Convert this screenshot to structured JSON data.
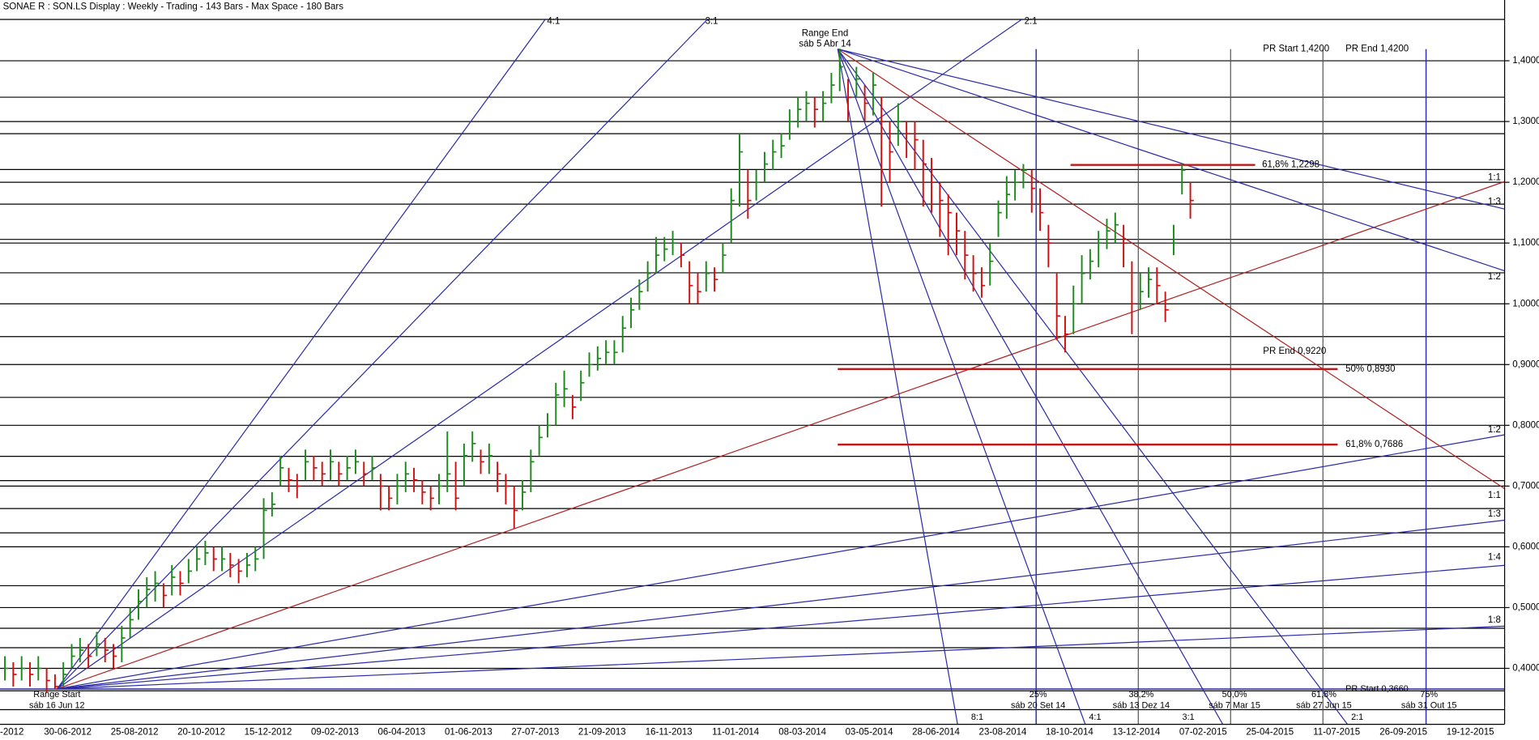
{
  "chart_data": {
    "type": "hlc",
    "title": "SONAE R : SON.LS Display :  Weekly  - Trading - 143 Bars -  Max Space - 180 Bars",
    "categories": [
      "-2012",
      "30-06-2012",
      "25-08-2012",
      "20-10-2012",
      "15-12-2012",
      "09-02-2013",
      "06-04-2013",
      "01-06-2013",
      "27-07-2013",
      "21-09-2013",
      "16-11-2013",
      "11-01-2014",
      "08-03-2014",
      "03-05-2014",
      "28-06-2014",
      "23-08-2014",
      "18-10-2014",
      "13-12-2014",
      "07-02-2015",
      "25-04-2015",
      "11-07-2015",
      "26-09-2015",
      "19-12-2015"
    ],
    "ylim": [
      0.3,
      1.5
    ],
    "yticks": [
      {
        "value": 0.4,
        "label": "0,4000"
      },
      {
        "value": 0.5,
        "label": "0,5000"
      },
      {
        "value": 0.6,
        "label": "0,6000"
      },
      {
        "value": 0.7,
        "label": "0,7000"
      },
      {
        "value": 0.8,
        "label": "0,8000"
      },
      {
        "value": 0.9,
        "label": "0,9000"
      },
      {
        "value": 1.0,
        "label": "1,0000"
      },
      {
        "value": 1.1,
        "label": "1,1000"
      },
      {
        "value": 1.2,
        "label": "1,2000"
      },
      {
        "value": 1.3,
        "label": "1,3000"
      },
      {
        "value": 1.4,
        "label": "1,4000"
      }
    ],
    "levels": [
      1.468,
      1.34,
      1.28,
      1.221,
      1.164,
      1.106,
      1.051,
      0.946,
      0.846,
      0.749,
      0.709,
      0.663,
      0.623,
      0.536,
      0.466,
      0.434,
      0.363,
      0.332
    ],
    "up_color": "#1a8a1a",
    "down_color": "#d01010",
    "high": [
      0.42,
      0.41,
      0.42,
      0.41,
      0.42,
      0.4,
      0.39,
      0.41,
      0.44,
      0.45,
      0.44,
      0.46,
      0.45,
      0.44,
      0.47,
      0.5,
      0.53,
      0.55,
      0.56,
      0.54,
      0.57,
      0.56,
      0.58,
      0.6,
      0.61,
      0.6,
      0.6,
      0.59,
      0.58,
      0.59,
      0.6,
      0.68,
      0.69,
      0.75,
      0.73,
      0.72,
      0.76,
      0.75,
      0.74,
      0.76,
      0.74,
      0.75,
      0.76,
      0.74,
      0.75,
      0.72,
      0.7,
      0.72,
      0.74,
      0.73,
      0.71,
      0.7,
      0.72,
      0.79,
      0.74,
      0.77,
      0.79,
      0.76,
      0.77,
      0.74,
      0.72,
      0.7,
      0.71,
      0.76,
      0.8,
      0.82,
      0.87,
      0.89,
      0.85,
      0.89,
      0.92,
      0.93,
      0.94,
      0.94,
      0.98,
      1.01,
      1.04,
      1.07,
      1.11,
      1.11,
      1.12,
      1.1,
      1.07,
      1.05,
      1.07,
      1.06,
      1.1,
      1.19,
      1.28,
      1.22,
      1.22,
      1.25,
      1.27,
      1.28,
      1.32,
      1.34,
      1.35,
      1.34,
      1.35,
      1.38,
      1.42,
      1.37,
      1.39,
      1.36,
      1.38,
      1.34,
      1.3,
      1.33,
      1.3,
      1.3,
      1.27,
      1.24,
      1.2,
      1.18,
      1.15,
      1.12,
      1.08,
      1.06,
      1.1,
      1.17,
      1.21,
      1.22,
      1.23,
      1.22,
      1.19,
      1.13,
      1.05,
      0.98,
      1.03,
      1.08,
      1.09,
      1.12,
      1.14,
      1.15,
      1.13,
      1.07,
      1.05,
      1.06,
      1.06,
      1.02,
      1.13,
      1.23,
      1.2
    ],
    "low": [
      0.38,
      0.37,
      0.38,
      0.37,
      0.38,
      0.36,
      0.366,
      0.37,
      0.4,
      0.41,
      0.4,
      0.42,
      0.41,
      0.4,
      0.41,
      0.45,
      0.48,
      0.5,
      0.51,
      0.5,
      0.52,
      0.52,
      0.54,
      0.56,
      0.57,
      0.56,
      0.56,
      0.55,
      0.54,
      0.55,
      0.56,
      0.58,
      0.65,
      0.7,
      0.69,
      0.68,
      0.71,
      0.71,
      0.7,
      0.71,
      0.7,
      0.71,
      0.72,
      0.7,
      0.71,
      0.66,
      0.66,
      0.67,
      0.69,
      0.69,
      0.67,
      0.66,
      0.67,
      0.69,
      0.66,
      0.7,
      0.74,
      0.72,
      0.72,
      0.69,
      0.67,
      0.63,
      0.66,
      0.69,
      0.75,
      0.78,
      0.8,
      0.83,
      0.81,
      0.84,
      0.88,
      0.89,
      0.9,
      0.9,
      0.92,
      0.96,
      0.99,
      1.02,
      1.05,
      1.07,
      1.08,
      1.06,
      1.0,
      1.0,
      1.02,
      1.02,
      1.05,
      1.1,
      1.16,
      1.14,
      1.17,
      1.2,
      1.22,
      1.24,
      1.27,
      1.29,
      1.3,
      1.29,
      1.3,
      1.33,
      1.35,
      1.3,
      1.34,
      1.3,
      1.31,
      1.16,
      1.2,
      1.26,
      1.24,
      1.22,
      1.16,
      1.15,
      1.11,
      1.08,
      1.08,
      1.04,
      1.02,
      1.01,
      1.03,
      1.11,
      1.14,
      1.17,
      1.19,
      1.15,
      1.12,
      1.06,
      0.94,
      0.92,
      0.95,
      1.0,
      1.04,
      1.06,
      1.09,
      1.1,
      1.06,
      0.95,
      0.99,
      1.01,
      1.0,
      0.97,
      1.08,
      1.18,
      1.14
    ],
    "close": [
      0.4,
      0.39,
      0.4,
      0.39,
      0.4,
      0.38,
      0.37,
      0.39,
      0.42,
      0.43,
      0.42,
      0.44,
      0.43,
      0.42,
      0.45,
      0.48,
      0.51,
      0.53,
      0.54,
      0.52,
      0.55,
      0.54,
      0.56,
      0.58,
      0.59,
      0.58,
      0.58,
      0.57,
      0.56,
      0.57,
      0.58,
      0.66,
      0.67,
      0.73,
      0.71,
      0.7,
      0.74,
      0.73,
      0.72,
      0.74,
      0.72,
      0.73,
      0.74,
      0.72,
      0.73,
      0.7,
      0.68,
      0.7,
      0.72,
      0.71,
      0.69,
      0.68,
      0.7,
      0.72,
      0.68,
      0.75,
      0.77,
      0.74,
      0.75,
      0.72,
      0.7,
      0.66,
      0.69,
      0.74,
      0.78,
      0.8,
      0.85,
      0.86,
      0.83,
      0.87,
      0.9,
      0.91,
      0.92,
      0.92,
      0.96,
      0.99,
      1.02,
      1.05,
      1.08,
      1.09,
      1.1,
      1.08,
      1.03,
      1.02,
      1.05,
      1.04,
      1.08,
      1.17,
      1.25,
      1.17,
      1.2,
      1.23,
      1.25,
      1.26,
      1.3,
      1.32,
      1.33,
      1.32,
      1.33,
      1.36,
      1.39,
      1.34,
      1.37,
      1.33,
      1.36,
      1.3,
      1.25,
      1.3,
      1.28,
      1.27,
      1.23,
      1.2,
      1.17,
      1.15,
      1.12,
      1.08,
      1.05,
      1.03,
      1.07,
      1.15,
      1.18,
      1.2,
      1.22,
      1.19,
      1.15,
      1.1,
      0.98,
      0.95,
      1.0,
      1.05,
      1.07,
      1.1,
      1.12,
      1.13,
      1.1,
      1.0,
      1.02,
      1.04,
      1.03,
      0.99,
      1.1,
      1.22,
      1.17
    ],
    "annotations": [
      "4:1",
      "3:1",
      "2:1",
      "Range End",
      "sáb 5 Abr 14",
      "PR Start 1,4200",
      "PR End 1,4200",
      "61,8% 1,2298",
      "PR End 0,9220",
      "50% 0,8930",
      "61,8% 0,7686",
      "1:1",
      "1:3",
      "1:2",
      "1:2",
      "1:1",
      "1:3",
      "1:4",
      "1:8",
      "PR Start 0,3660",
      "Range Start",
      "sáb 16 Jun 12",
      "25%",
      "sáb 20 Set 14",
      "38,2%",
      "sáb 13 Dez 14",
      "50,0%",
      "sáb 7 Mar 15",
      "61,8%",
      "sáb 27 Jun 15",
      "75%",
      "sáb 31 Out 15",
      "8:1",
      "4:1",
      "3:1",
      "2:1"
    ]
  }
}
